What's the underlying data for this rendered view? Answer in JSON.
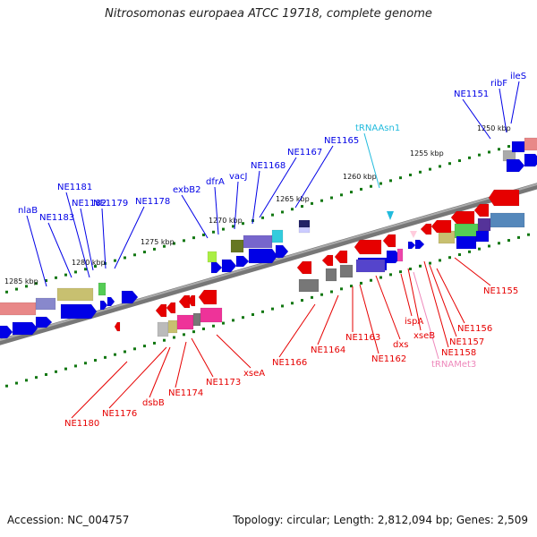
{
  "title": "Nitrosomonas europaea ATCC 19718, complete genome",
  "accession": "Accession: NC_004757",
  "summary": "Topology: circular; Length: 2,812,094 bp; Genes: 2,509",
  "colors": {
    "forward": "#0000e6",
    "reverse": "#e60000",
    "trna": "#22bbdd",
    "trna_met": "#ee88bb",
    "backbone": "#888888",
    "tick": "#117711"
  },
  "tick_labels": [
    "1250 kbp",
    "1255 kbp",
    "1260 kbp",
    "1265 kbp",
    "1270 kbp",
    "1275 kbp",
    "1280 kbp",
    "1285 kbp"
  ],
  "top_labels": [
    "ileS",
    "ribF",
    "NE1151",
    "tRNAAsn1",
    "NE1165",
    "NE1167",
    "NE1168",
    "vacJ",
    "dfrA",
    "exbB2",
    "NE1178",
    "NE1179",
    "NE1182",
    "NE1181",
    "NE1183",
    "nlaB"
  ],
  "bottom_labels": [
    "NE1155",
    "NE1156",
    "NE1157",
    "NE1158",
    "tRNAMet3",
    "xseB",
    "ispA",
    "dxs",
    "NE1162",
    "NE1163",
    "NE1164",
    "NE1166",
    "xseA",
    "NE1173",
    "NE1174",
    "dsbB",
    "NE1176",
    "NE1180"
  ]
}
